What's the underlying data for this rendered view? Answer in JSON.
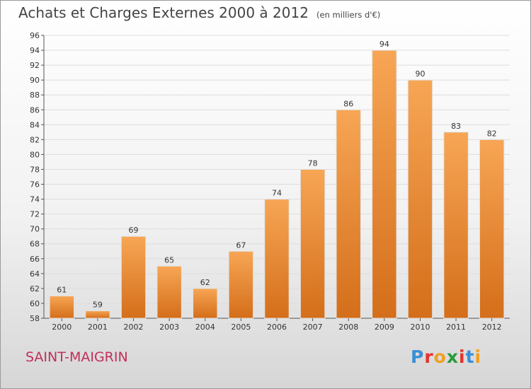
{
  "header": {
    "title": "Achats et Charges Externes 2000 à 2012",
    "subtitle": "(en milliers d'€)"
  },
  "commune": "SAINT-MAIGRIN",
  "logo": {
    "text": "Proxiti",
    "letter_colors": [
      "#3a8fd6",
      "#e8322b",
      "#f0a020",
      "#2a9a3a",
      "#e8322b",
      "#3a8fd6",
      "#f0a020"
    ]
  },
  "colors": {
    "bar_top": "#f7a655",
    "bar_bottom": "#d46e1a",
    "bar_edge": "#e2e2e2",
    "grid": "#dddddd",
    "axis": "#555555",
    "text": "#333333"
  },
  "chart_data": {
    "type": "bar",
    "title": "Achats et Charges Externes 2000 à 2012",
    "subtitle": "(en milliers d'€)",
    "categories": [
      "2000",
      "2001",
      "2002",
      "2003",
      "2004",
      "2005",
      "2006",
      "2007",
      "2008",
      "2009",
      "2010",
      "2011",
      "2012"
    ],
    "values": [
      61,
      59,
      69,
      65,
      62,
      67,
      74,
      78,
      86,
      94,
      90,
      83,
      82
    ],
    "ylim": [
      58,
      96
    ],
    "yticks": [
      58,
      60,
      62,
      64,
      66,
      68,
      70,
      72,
      74,
      76,
      78,
      80,
      82,
      84,
      86,
      88,
      90,
      92,
      94,
      96
    ],
    "grid": true,
    "data_labels": true
  }
}
